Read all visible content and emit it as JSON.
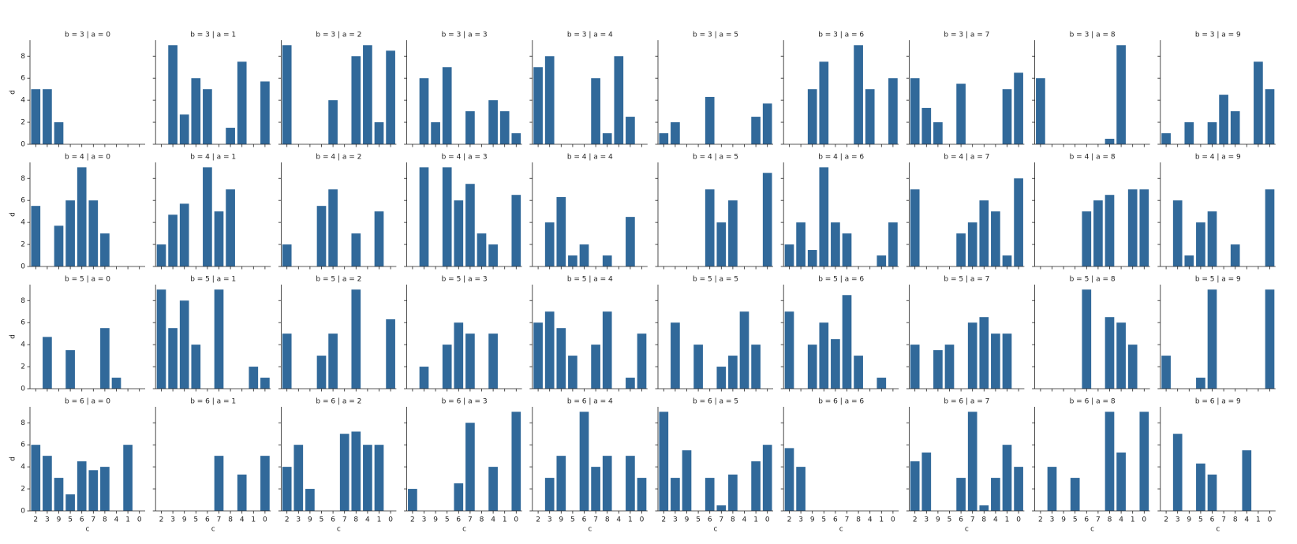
{
  "chart_data": {
    "type": "bar",
    "xlabel": "c",
    "ylabel": "d",
    "color": "#31699a",
    "categories": [
      "2",
      "3",
      "9",
      "5",
      "6",
      "7",
      "8",
      "4",
      "1",
      "0"
    ],
    "ylim": [
      0,
      9.45
    ],
    "yticks": [
      0,
      2,
      4,
      6,
      8
    ],
    "panels": [
      {
        "title": "b = 3 | a = 0",
        "values": [
          5,
          5,
          2,
          null,
          null,
          null,
          null,
          null,
          null,
          null
        ]
      },
      {
        "title": "b = 3 | a = 1",
        "values": [
          null,
          9,
          2.7,
          6,
          5,
          null,
          1.5,
          7.5,
          null,
          5.7
        ]
      },
      {
        "title": "b = 3 | a = 2",
        "values": [
          9,
          null,
          null,
          null,
          4,
          null,
          8,
          9,
          2,
          8.5
        ]
      },
      {
        "title": "b = 3 | a = 3",
        "values": [
          null,
          6,
          2,
          7,
          null,
          3,
          null,
          4,
          3,
          1
        ]
      },
      {
        "title": "b = 3 | a = 4",
        "values": [
          7,
          8,
          null,
          null,
          null,
          6,
          1,
          8,
          2.5,
          null
        ]
      },
      {
        "title": "b = 3 | a = 5",
        "values": [
          1,
          2,
          null,
          null,
          4.3,
          null,
          null,
          null,
          2.5,
          3.7
        ]
      },
      {
        "title": "b = 3 | a = 6",
        "values": [
          null,
          null,
          5,
          7.5,
          null,
          null,
          9,
          5,
          null,
          6
        ]
      },
      {
        "title": "b = 3 | a = 7",
        "values": [
          6,
          3.3,
          2,
          null,
          5.5,
          null,
          null,
          null,
          5,
          6.5
        ]
      },
      {
        "title": "b = 3 | a = 8",
        "values": [
          6,
          null,
          null,
          null,
          null,
          null,
          0.5,
          9,
          null,
          null
        ]
      },
      {
        "title": "b = 3 | a = 9",
        "values": [
          1,
          null,
          2,
          null,
          2,
          4.5,
          3,
          null,
          7.5,
          5
        ]
      },
      {
        "title": "b = 4 | a = 0",
        "values": [
          5.5,
          null,
          3.7,
          6,
          9,
          6,
          3,
          null,
          null,
          null
        ]
      },
      {
        "title": "b = 4 | a = 1",
        "values": [
          2,
          4.7,
          5.7,
          null,
          9,
          5,
          7,
          null,
          null,
          null
        ]
      },
      {
        "title": "b = 4 | a = 2",
        "values": [
          2,
          null,
          null,
          5.5,
          7,
          null,
          3,
          null,
          5,
          null
        ]
      },
      {
        "title": "b = 4 | a = 3",
        "values": [
          null,
          9,
          null,
          9,
          6,
          7.5,
          3,
          2,
          null,
          6.5
        ]
      },
      {
        "title": "b = 4 | a = 4",
        "values": [
          null,
          4,
          6.3,
          1,
          2,
          null,
          1,
          null,
          4.5,
          null
        ]
      },
      {
        "title": "b = 4 | a = 5",
        "values": [
          null,
          null,
          null,
          null,
          7,
          4,
          6,
          null,
          null,
          8.5
        ]
      },
      {
        "title": "b = 4 | a = 6",
        "values": [
          2,
          4,
          1.5,
          9,
          4,
          3,
          null,
          null,
          1,
          4
        ]
      },
      {
        "title": "b = 4 | a = 7",
        "values": [
          7,
          null,
          null,
          null,
          3,
          4,
          6,
          5,
          1,
          8
        ]
      },
      {
        "title": "b = 4 | a = 8",
        "values": [
          null,
          null,
          null,
          null,
          5,
          6,
          6.5,
          null,
          7,
          7
        ]
      },
      {
        "title": "b = 4 | a = 9",
        "values": [
          null,
          6,
          1,
          4,
          5,
          null,
          2,
          null,
          null,
          7
        ]
      },
      {
        "title": "b = 5 | a = 0",
        "values": [
          null,
          4.7,
          null,
          3.5,
          null,
          null,
          5.5,
          1,
          null,
          null
        ]
      },
      {
        "title": "b = 5 | a = 1",
        "values": [
          9,
          5.5,
          8,
          4,
          null,
          9,
          null,
          null,
          2,
          1
        ]
      },
      {
        "title": "b = 5 | a = 2",
        "values": [
          5,
          null,
          null,
          3,
          5,
          null,
          9,
          null,
          null,
          6.3
        ]
      },
      {
        "title": "b = 5 | a = 3",
        "values": [
          null,
          2,
          null,
          4,
          6,
          5,
          null,
          5,
          null,
          null
        ]
      },
      {
        "title": "b = 5 | a = 4",
        "values": [
          6,
          7,
          5.5,
          3,
          null,
          4,
          7,
          null,
          1,
          5
        ]
      },
      {
        "title": "b = 5 | a = 5",
        "values": [
          null,
          6,
          null,
          4,
          null,
          2,
          3,
          7,
          4,
          null
        ]
      },
      {
        "title": "b = 5 | a = 6",
        "values": [
          7,
          null,
          4,
          6,
          4.5,
          8.5,
          3,
          null,
          1,
          null
        ]
      },
      {
        "title": "b = 5 | a = 7",
        "values": [
          4,
          null,
          3.5,
          4,
          null,
          6,
          6.5,
          5,
          5,
          null
        ]
      },
      {
        "title": "b = 5 | a = 8",
        "values": [
          null,
          null,
          null,
          null,
          9,
          null,
          6.5,
          6,
          4,
          null
        ]
      },
      {
        "title": "b = 5 | a = 9",
        "values": [
          3,
          null,
          null,
          1,
          9,
          null,
          null,
          null,
          null,
          9
        ]
      },
      {
        "title": "b = 6 | a = 0",
        "values": [
          6,
          5,
          3,
          1.5,
          4.5,
          3.7,
          4,
          null,
          6,
          null
        ]
      },
      {
        "title": "b = 6 | a = 1",
        "values": [
          null,
          null,
          null,
          null,
          null,
          5,
          null,
          3.3,
          null,
          5
        ]
      },
      {
        "title": "b = 6 | a = 2",
        "values": [
          4,
          6,
          2,
          null,
          null,
          7,
          7.2,
          6,
          6,
          null
        ]
      },
      {
        "title": "b = 6 | a = 3",
        "values": [
          2,
          null,
          null,
          null,
          2.5,
          8,
          null,
          4,
          null,
          9
        ]
      },
      {
        "title": "b = 6 | a = 4",
        "values": [
          null,
          3,
          5,
          null,
          9,
          4,
          5,
          null,
          5,
          3
        ]
      },
      {
        "title": "b = 6 | a = 5",
        "values": [
          9,
          3,
          5.5,
          null,
          3,
          0.5,
          3.3,
          null,
          4.5,
          6
        ]
      },
      {
        "title": "b = 6 | a = 6",
        "values": [
          5.7,
          4,
          null,
          null,
          null,
          null,
          null,
          null,
          null,
          null
        ]
      },
      {
        "title": "b = 6 | a = 7",
        "values": [
          4.5,
          5.3,
          null,
          null,
          3,
          9,
          0.5,
          3,
          6,
          4
        ]
      },
      {
        "title": "b = 6 | a = 8",
        "values": [
          null,
          4,
          null,
          3,
          null,
          null,
          9,
          5.3,
          null,
          9
        ]
      },
      {
        "title": "b = 6 | a = 9",
        "values": [
          null,
          7,
          null,
          4.3,
          3.3,
          null,
          null,
          5.5,
          null,
          null
        ]
      }
    ]
  }
}
